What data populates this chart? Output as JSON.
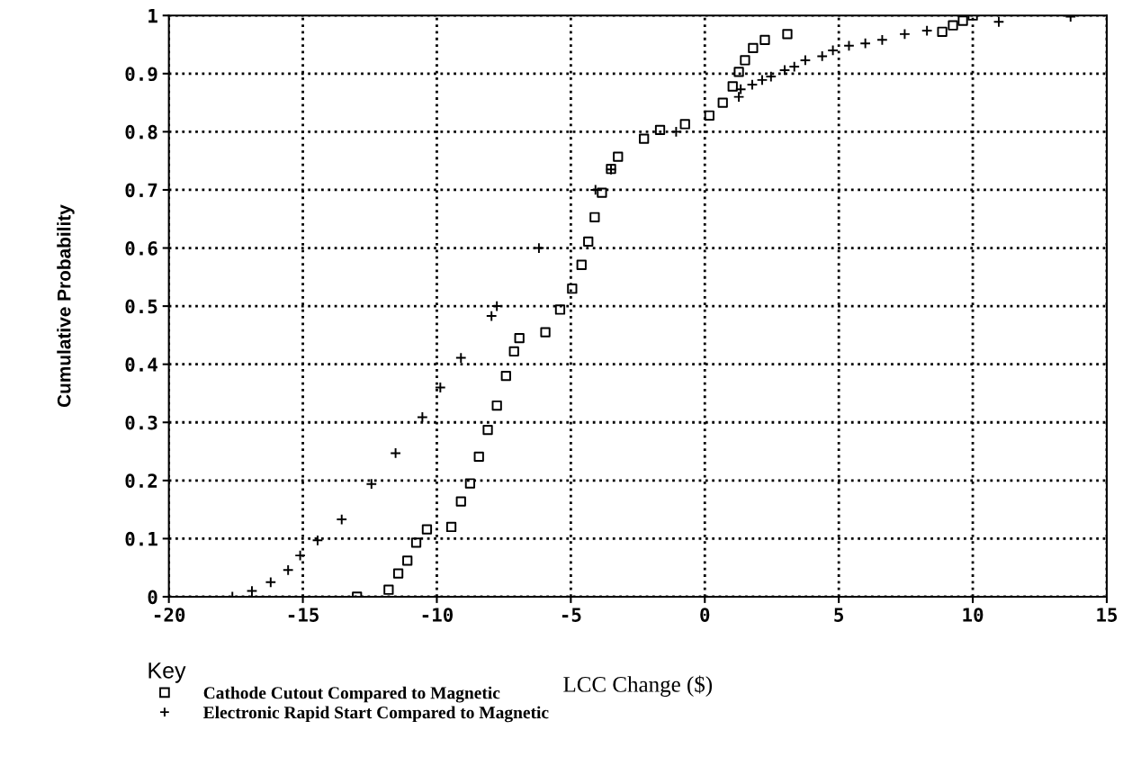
{
  "chart_data": {
    "type": "scatter",
    "xlabel": "LCC Change ($)",
    "ylabel": "Cumulative Probability",
    "legend_title": "Key",
    "legend": "bottom",
    "xlim": [
      -20,
      15
    ],
    "xticks": [
      -20,
      -15,
      -10,
      -5,
      0,
      5,
      10,
      15
    ],
    "ylim": [
      0,
      1
    ],
    "yticks": [
      0,
      0.1,
      0.2,
      0.3,
      0.4,
      0.5,
      0.6,
      0.7,
      0.8,
      0.9,
      1
    ],
    "grid": true,
    "line_style": "dotted",
    "series": [
      {
        "name": "Cathode Cutout Compared to Magnetic",
        "color": "#000000",
        "marker": "square",
        "x": [
          -12.98,
          -11.8,
          -11.44,
          -11.1,
          -10.77,
          -10.37,
          -9.46,
          -9.1,
          -8.76,
          -8.43,
          -8.1,
          -7.76,
          -7.42,
          -7.12,
          -6.92,
          -5.95,
          -5.4,
          -4.95,
          -4.6,
          -4.35,
          -4.11,
          -3.84,
          -3.5,
          -3.24,
          -2.27,
          -1.67,
          -0.74,
          0.17,
          0.67,
          1.04,
          1.27,
          1.5,
          1.8,
          2.24,
          3.08,
          8.86,
          9.26,
          9.63,
          10.0
        ],
        "values": [
          0,
          0.012,
          0.04,
          0.062,
          0.093,
          0.116,
          0.12,
          0.164,
          0.195,
          0.241,
          0.287,
          0.329,
          0.38,
          0.422,
          0.445,
          0.455,
          0.494,
          0.53,
          0.571,
          0.611,
          0.653,
          0.695,
          0.736,
          0.757,
          0.788,
          0.803,
          0.813,
          0.828,
          0.85,
          0.878,
          0.903,
          0.923,
          0.944,
          0.958,
          0.968,
          0.972,
          0.983,
          0.991,
          1.0
        ]
      },
      {
        "name": "Electronic Rapid Start Compared to Magnetic",
        "color": "#000000",
        "marker": "cross",
        "x": [
          -17.63,
          -16.9,
          -16.2,
          -15.55,
          -15.1,
          -14.45,
          -13.55,
          -12.44,
          -11.54,
          -10.54,
          -9.87,
          -9.1,
          -7.96,
          -7.76,
          -6.19,
          -4.08,
          -3.5,
          -1.07,
          1.27,
          1.34,
          1.77,
          2.14,
          2.47,
          2.98,
          3.34,
          3.75,
          4.38,
          4.78,
          5.38,
          5.99,
          6.62,
          7.46,
          8.29,
          10.97,
          13.65
        ],
        "values": [
          0,
          0.01,
          0.025,
          0.046,
          0.071,
          0.097,
          0.133,
          0.194,
          0.247,
          0.309,
          0.36,
          0.411,
          0.483,
          0.5,
          0.6,
          0.7,
          0.735,
          0.8,
          0.86,
          0.873,
          0.881,
          0.889,
          0.895,
          0.906,
          0.912,
          0.923,
          0.93,
          0.94,
          0.948,
          0.952,
          0.958,
          0.968,
          0.974,
          0.989,
          0.998
        ]
      }
    ]
  }
}
